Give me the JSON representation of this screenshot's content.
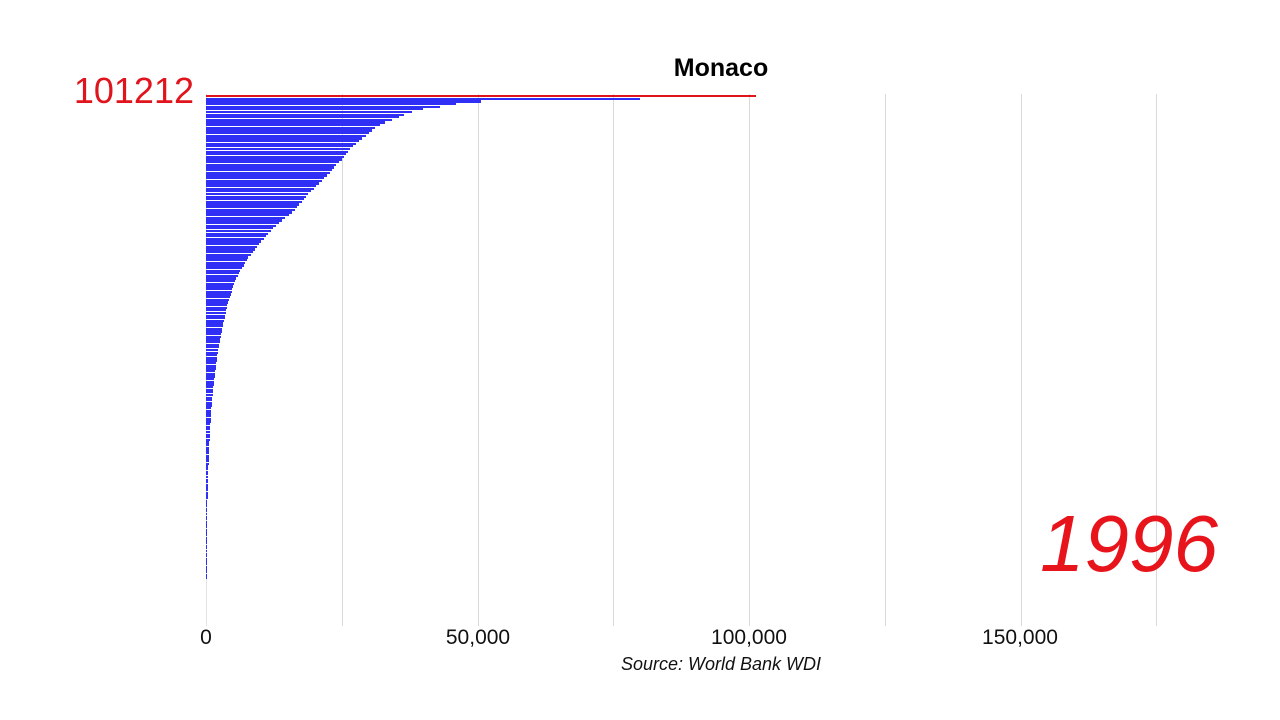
{
  "chart_data": {
    "type": "bar",
    "orientation": "horizontal",
    "title": "Monaco",
    "subtitle_year": "1996",
    "leader": {
      "name": "Monaco",
      "value": 101212,
      "color": "#e0141c"
    },
    "bar_color": "#2f2ff5",
    "xlabel": "",
    "ylabel": "",
    "xlim": [
      0,
      180000
    ],
    "x_ticks": [
      0,
      50000,
      100000,
      150000
    ],
    "x_tick_labels": [
      "0",
      "50,000",
      "100,000",
      "150,000"
    ],
    "gridlines_at": [
      25000,
      50000,
      75000,
      100000,
      125000,
      150000,
      175000
    ],
    "grid": true,
    "legend": null,
    "source": "Source: World Bank WDI",
    "values_sorted_desc": [
      101212,
      80000,
      50600,
      46000,
      43000,
      40000,
      38000,
      36500,
      35500,
      34200,
      33000,
      32000,
      31200,
      30600,
      30000,
      29400,
      28800,
      28200,
      27600,
      27000,
      26600,
      26200,
      25800,
      25400,
      25000,
      24500,
      24000,
      23600,
      23200,
      22800,
      22300,
      21800,
      21300,
      20800,
      20300,
      19800,
      19300,
      18800,
      18400,
      18000,
      17600,
      17200,
      16800,
      16300,
      15800,
      15200,
      14600,
      14000,
      13400,
      12900,
      12400,
      11900,
      11400,
      11000,
      10600,
      10200,
      9800,
      9400,
      9000,
      8600,
      8200,
      7800,
      7500,
      7200,
      6900,
      6600,
      6300,
      6000,
      5800,
      5600,
      5400,
      5200,
      5000,
      4850,
      4700,
      4550,
      4400,
      4250,
      4100,
      3950,
      3800,
      3700,
      3600,
      3500,
      3400,
      3300,
      3200,
      3100,
      3000,
      2900,
      2800,
      2700,
      2600,
      2500,
      2420,
      2340,
      2260,
      2180,
      2100,
      2030,
      1960,
      1890,
      1820,
      1750,
      1690,
      1630,
      1570,
      1510,
      1450,
      1400,
      1350,
      1300,
      1250,
      1200,
      1160,
      1120,
      1080,
      1040,
      1000,
      960,
      920,
      880,
      850,
      820,
      790,
      760,
      730,
      700,
      680,
      660,
      640,
      620,
      600,
      580,
      560,
      540,
      520,
      500,
      480,
      460,
      440,
      420,
      400,
      385,
      370,
      355,
      340,
      325,
      310,
      300,
      290,
      280,
      270,
      260,
      250,
      240,
      230,
      220,
      210,
      200,
      192,
      184,
      176,
      168,
      160,
      152,
      145,
      138,
      131,
      124,
      117,
      110,
      104,
      98,
      92,
      86,
      80,
      75,
      70,
      65,
      60,
      55,
      50
    ]
  },
  "chart": {
    "title": "Monaco",
    "leader_value": "101212",
    "year": "1996",
    "source": "Source: World Bank WDI",
    "ticks": [
      "0",
      "50,000",
      "100,000",
      "150,000"
    ]
  }
}
